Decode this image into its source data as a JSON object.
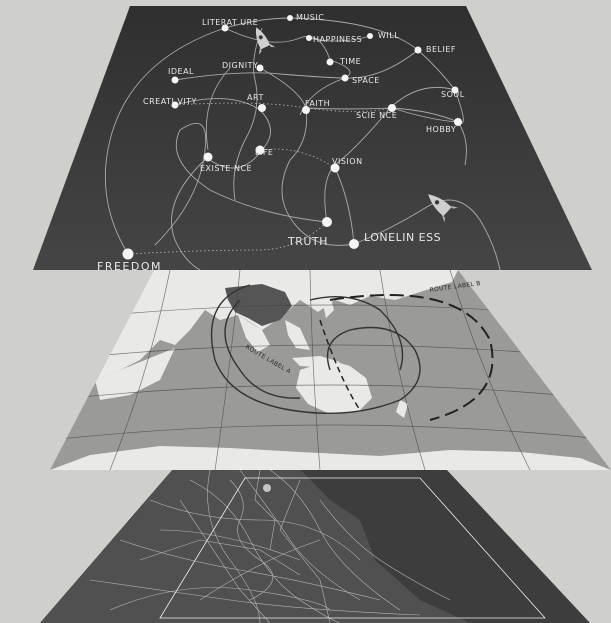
{
  "concept_map": {
    "nodes": [
      {
        "id": "music",
        "label": "MUSIC"
      },
      {
        "id": "literature",
        "label": "LITERAT URE"
      },
      {
        "id": "happiness",
        "label": "HAPPINESS"
      },
      {
        "id": "will",
        "label": "WILL"
      },
      {
        "id": "belief",
        "label": "BELIEF"
      },
      {
        "id": "dignity",
        "label": "DIGNITY"
      },
      {
        "id": "time",
        "label": "TIME"
      },
      {
        "id": "ideal",
        "label": "IDEAL"
      },
      {
        "id": "space",
        "label": "SPACE"
      },
      {
        "id": "soul",
        "label": "SOUL"
      },
      {
        "id": "creativity",
        "label": "CREATI VITY"
      },
      {
        "id": "art",
        "label": "ART"
      },
      {
        "id": "faith",
        "label": "FAITH"
      },
      {
        "id": "science",
        "label": "SCIE NCE"
      },
      {
        "id": "hobby",
        "label": "HOBBY"
      },
      {
        "id": "existence",
        "label": "EXISTE NCE"
      },
      {
        "id": "life",
        "label": "LIFE"
      },
      {
        "id": "vision",
        "label": "VISION"
      },
      {
        "id": "truth",
        "label": "TRUTH"
      },
      {
        "id": "loneliness",
        "label": "LONELIN ESS"
      },
      {
        "id": "freedom",
        "label": "FREEDOM"
      }
    ]
  },
  "middle_map": {
    "route_labels": [
      "ROUTE LABEL A",
      "ROUTE LABEL B"
    ]
  },
  "colors": {
    "background": "#cfcfcc",
    "concept_panel": "#3a3a3a",
    "world_map_ocean": "#9a9a98",
    "world_map_land": "#e9e9e7",
    "highlight_land": "#555555",
    "street_map_bg": "#3d3d3d"
  }
}
